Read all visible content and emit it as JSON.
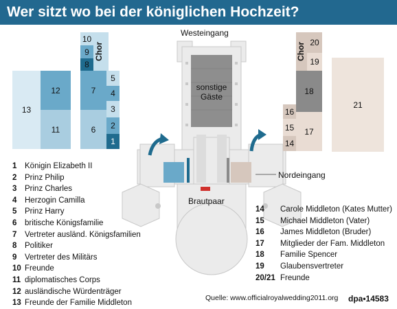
{
  "title": "Wer sitzt wo bei der königlichen Hochzeit?",
  "entrances": {
    "west": "Westeingang",
    "north": "Nordeingang"
  },
  "areas": {
    "other_guests": "sonstige Gäste",
    "bridal_couple": "Brautpaar",
    "choir": "Chor"
  },
  "blocks": {
    "b1": "1",
    "b2": "2",
    "b3": "3",
    "b4": "4",
    "b5": "5",
    "b6": "6",
    "b7": "7",
    "b8": "8",
    "b9": "9",
    "b10": "10",
    "b11": "11",
    "b12": "12",
    "b13": "13",
    "b14": "14",
    "b15": "15",
    "b16": "16",
    "b17": "17",
    "b18": "18",
    "b19": "19",
    "b20": "20",
    "b21": "21"
  },
  "legend_left": [
    {
      "num": "1",
      "label": "Königin Elizabeth II"
    },
    {
      "num": "2",
      "label": "Prinz Philip"
    },
    {
      "num": "3",
      "label": "Prinz Charles"
    },
    {
      "num": "4",
      "label": "Herzogin Camilla"
    },
    {
      "num": "5",
      "label": "Prinz Harry"
    },
    {
      "num": "6",
      "label": "britische Königsfamilie"
    },
    {
      "num": "7",
      "label": "Vertreter ausländ. Königsfamilien"
    },
    {
      "num": "8",
      "label": "Politiker"
    },
    {
      "num": "9",
      "label": "Vertreter des Militärs"
    },
    {
      "num": "10",
      "label": "Freunde"
    },
    {
      "num": "11",
      "label": "diplomatisches Corps"
    },
    {
      "num": "12",
      "label": "ausländische Würdenträger"
    },
    {
      "num": "13",
      "label": "Freunde der Familie Middleton"
    }
  ],
  "legend_right": [
    {
      "num": "14",
      "label": "Carole Middleton (Kates Mutter)"
    },
    {
      "num": "15",
      "label": "Michael Middleton (Vater)"
    },
    {
      "num": "16",
      "label": "James Middleton (Bruder)"
    },
    {
      "num": "17",
      "label": "Mitglieder der Fam. Middleton"
    },
    {
      "num": "18",
      "label": "Familie Spencer"
    },
    {
      "num": "19",
      "label": "Glaubensvertreter"
    },
    {
      "num": "20/21",
      "label": "Freunde"
    }
  ],
  "source": "Quelle: www.officialroyalwedding2011.org",
  "credit": "dpa•14583",
  "colors": {
    "header": "#22688f",
    "dark_blue": "#1f6b8e",
    "mid_blue": "#6aa9c9",
    "light_blue": "#a9cde0",
    "pale_blue": "#c5dfec",
    "pale_blue2": "#d9eaf3",
    "grey": "#8a8a8a",
    "beige": "#e9dcd3",
    "beige_dark": "#d6c7bd",
    "arrow": "#1f6b8e",
    "bride": "#d0302c"
  }
}
